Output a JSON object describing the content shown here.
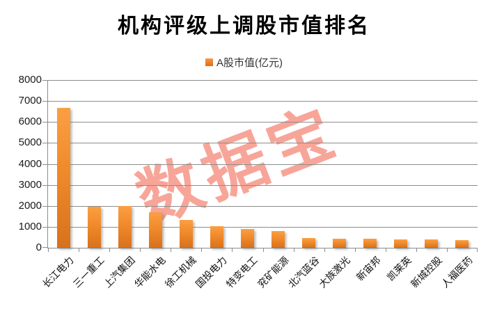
{
  "title": {
    "text": "机构评级上调股市值排名"
  },
  "legend": {
    "series_label": "A股市值(亿元)",
    "swatch_color": "#ED7D31"
  },
  "watermark": {
    "text": "数据宝",
    "color": "#F89C8E"
  },
  "colors": {
    "bar_top": "#FB9F43",
    "bar_bottom": "#D8711C",
    "gridline": "#8C8C8C",
    "axis_text": "#1A1A1A",
    "title_text": "#000000"
  },
  "chart_data": {
    "type": "bar",
    "title": "机构评级上调股市值排名",
    "series": [
      {
        "name": "A股市值(亿元)",
        "values": [
          6670,
          1950,
          1980,
          1700,
          1320,
          1040,
          900,
          810,
          455,
          420,
          430,
          400,
          410,
          365
        ]
      }
    ],
    "categories": [
      "长江电力",
      "三一重工",
      "上汽集团",
      "华能水电",
      "徐工机械",
      "国投电力",
      "特变电工",
      "兖矿能源",
      "北汽蓝谷",
      "大族激光",
      "新宙邦",
      "凯莱英",
      "新城控股",
      "人福医药"
    ],
    "xlabel": "",
    "ylabel": "",
    "ylim": [
      0,
      8000
    ],
    "ytick_step": 1000,
    "ytick_labels": [
      "0",
      "1000",
      "2000",
      "3000",
      "4000",
      "5000",
      "6000",
      "7000",
      "8000"
    ],
    "grid": "horizontal",
    "legend_position": "top-center",
    "x_label_rotation_deg": -45,
    "watermark_text": "数据宝"
  }
}
